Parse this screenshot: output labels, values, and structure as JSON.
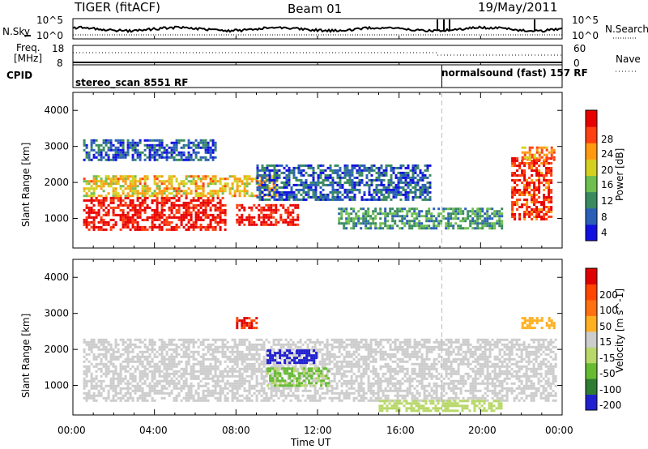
{
  "header": {
    "station": "TIGER (fitACF)",
    "beam": "Beam 01",
    "date": "19/May/2011"
  },
  "top_panel": {
    "left_label": "N.Sky",
    "right_label": "N.Search",
    "left_ticks": [
      "10^5",
      "10^0"
    ],
    "right_ticks": [
      "10^5",
      "10^0"
    ]
  },
  "freq_panel": {
    "label_line1": "Freq.",
    "label_line2": "[MHz]",
    "left_ticks": [
      "18",
      "8"
    ],
    "right_ticks": [
      "60",
      "0"
    ],
    "right_label": "Nave"
  },
  "cpid_panel": {
    "label": "CPID",
    "segments": [
      {
        "name": "stereo_scan 8551 RF",
        "start": "00:00"
      },
      {
        "name": "normalsound (fast) 157 RF",
        "start": "18:06"
      }
    ]
  },
  "power_panel": {
    "ylabel": "Slant Range [km]",
    "colorbar_label": "Power [dB]",
    "colorbar_ticks": [
      "28",
      "24",
      "20",
      "16",
      "12",
      "8",
      "4"
    ]
  },
  "velocity_panel": {
    "ylabel": "Slant Range [km]",
    "colorbar_label": "Velocity [m s^-1]",
    "colorbar_ticks": [
      "200",
      "100",
      "50",
      "15",
      "-15",
      "-50",
      "-100",
      "-200"
    ]
  },
  "xaxis": {
    "label": "Time UT",
    "ticks": [
      "00:00",
      "04:00",
      "08:00",
      "12:00",
      "16:00",
      "20:00",
      "00:00"
    ]
  },
  "chart_data": [
    {
      "type": "heatmap",
      "title": "Power",
      "xlabel": "Time UT",
      "ylabel": "Slant Range [km]",
      "xlim": [
        "00:00",
        "24:00"
      ],
      "ylim": [
        180,
        4500
      ],
      "yticks": [
        1000,
        2000,
        3000,
        4000
      ],
      "colorbar": {
        "label": "Power [dB]",
        "range": [
          0,
          30
        ],
        "ticks": [
          4,
          8,
          12,
          16,
          20,
          24,
          28
        ],
        "colors": [
          "#1010e0",
          "#2a5fb8",
          "#3a8a60",
          "#6fbf50",
          "#d4d020",
          "#ff9a10",
          "#ff4010",
          "#e80000"
        ]
      },
      "regions": [
        {
          "time": [
            "00:30",
            "07:30"
          ],
          "range_km": [
            700,
            1600
          ],
          "power_db": 28
        },
        {
          "time": [
            "08:00",
            "11:00"
          ],
          "range_km": [
            850,
            1400
          ],
          "power_db": 28
        },
        {
          "time": [
            "00:30",
            "10:00"
          ],
          "range_km": [
            1600,
            2200
          ],
          "power_db": 18
        },
        {
          "time": [
            "09:00",
            "17:30"
          ],
          "range_km": [
            1500,
            2500
          ],
          "power_db": 6
        },
        {
          "time": [
            "13:00",
            "21:00"
          ],
          "range_km": [
            700,
            1300
          ],
          "power_db": 10
        },
        {
          "time": [
            "21:30",
            "23:30"
          ],
          "range_km": [
            1000,
            2700
          ],
          "power_db": 26
        },
        {
          "time": [
            "00:30",
            "07:00"
          ],
          "range_km": [
            2600,
            3200
          ],
          "power_db": 6
        },
        {
          "time": [
            "22:00",
            "23:40"
          ],
          "range_km": [
            2600,
            3000
          ],
          "power_db": 22
        }
      ]
    },
    {
      "type": "heatmap",
      "title": "Velocity",
      "xlabel": "Time UT",
      "ylabel": "Slant Range [km]",
      "xlim": [
        "00:00",
        "24:00"
      ],
      "ylim": [
        180,
        4500
      ],
      "yticks": [
        1000,
        2000,
        3000,
        4000
      ],
      "colorbar": {
        "label": "Velocity [m s^-1]",
        "range": [
          -250,
          250
        ],
        "ticks": [
          200,
          100,
          50,
          15,
          -15,
          -50,
          -100,
          -200
        ],
        "colors": [
          "#2020d0",
          "#2e7d32",
          "#66bb33",
          "#b8d86a",
          "#cccccc",
          "#ffb020",
          "#ff7010",
          "#ff4500",
          "#e00000"
        ]
      },
      "regions": [
        {
          "time": [
            "00:30",
            "23:40"
          ],
          "range_km": [
            600,
            2300
          ],
          "velocity": 0
        },
        {
          "time": [
            "09:30",
            "12:00"
          ],
          "range_km": [
            1600,
            2000
          ],
          "velocity": -220
        },
        {
          "time": [
            "09:30",
            "12:30"
          ],
          "range_km": [
            1000,
            1500
          ],
          "velocity": -90
        },
        {
          "time": [
            "15:00",
            "21:00"
          ],
          "range_km": [
            300,
            600
          ],
          "velocity": -60
        },
        {
          "time": [
            "08:00",
            "09:00"
          ],
          "range_km": [
            2600,
            2900
          ],
          "velocity": 200
        },
        {
          "time": [
            "22:00",
            "23:40"
          ],
          "range_km": [
            2600,
            2900
          ],
          "velocity": 60
        }
      ]
    }
  ]
}
